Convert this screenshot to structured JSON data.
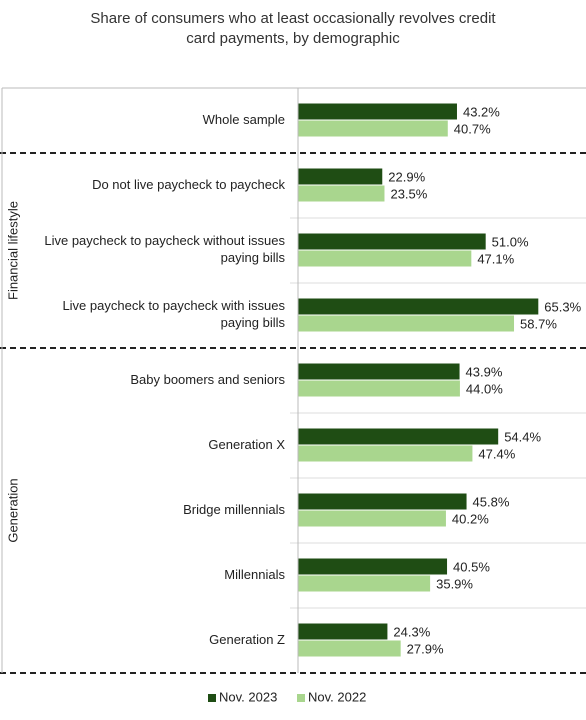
{
  "chart_data": {
    "type": "hbar",
    "title": "Share of consumers who at least occasionally revolves credit\ncard payments, by demographic",
    "groups": [
      {
        "name": null,
        "categories": [
          "Whole sample"
        ]
      },
      {
        "name": "Financial lifestyle",
        "categories": [
          "Do not live paycheck to paycheck",
          "Live paycheck to paycheck without issues\npaying bills",
          "Live paycheck to paycheck with issues\npaying bills"
        ]
      },
      {
        "name": "Generation",
        "categories": [
          "Baby boomers and seniors",
          "Generation X",
          "Bridge millennials",
          "Millennials",
          "Generation Z"
        ]
      }
    ],
    "series": [
      {
        "name": "Nov. 2023",
        "color": "#1f4d14",
        "values": [
          43.2,
          22.9,
          51.0,
          65.3,
          43.9,
          54.4,
          45.8,
          40.5,
          24.3
        ],
        "value_labels": [
          "43.2%",
          "22.9%",
          "51.0%",
          "65.3%",
          "43.9%",
          "54.4%",
          "45.8%",
          "40.5%",
          "24.3%"
        ]
      },
      {
        "name": "Nov. 2022",
        "color": "#a9d68e",
        "values": [
          40.7,
          23.5,
          47.1,
          58.7,
          44.0,
          47.4,
          40.2,
          35.9,
          27.9
        ],
        "value_labels": [
          "40.7%",
          "23.5%",
          "47.1%",
          "58.7%",
          "44.0%",
          "47.4%",
          "40.2%",
          "35.9%",
          "27.9%"
        ]
      }
    ]
  }
}
